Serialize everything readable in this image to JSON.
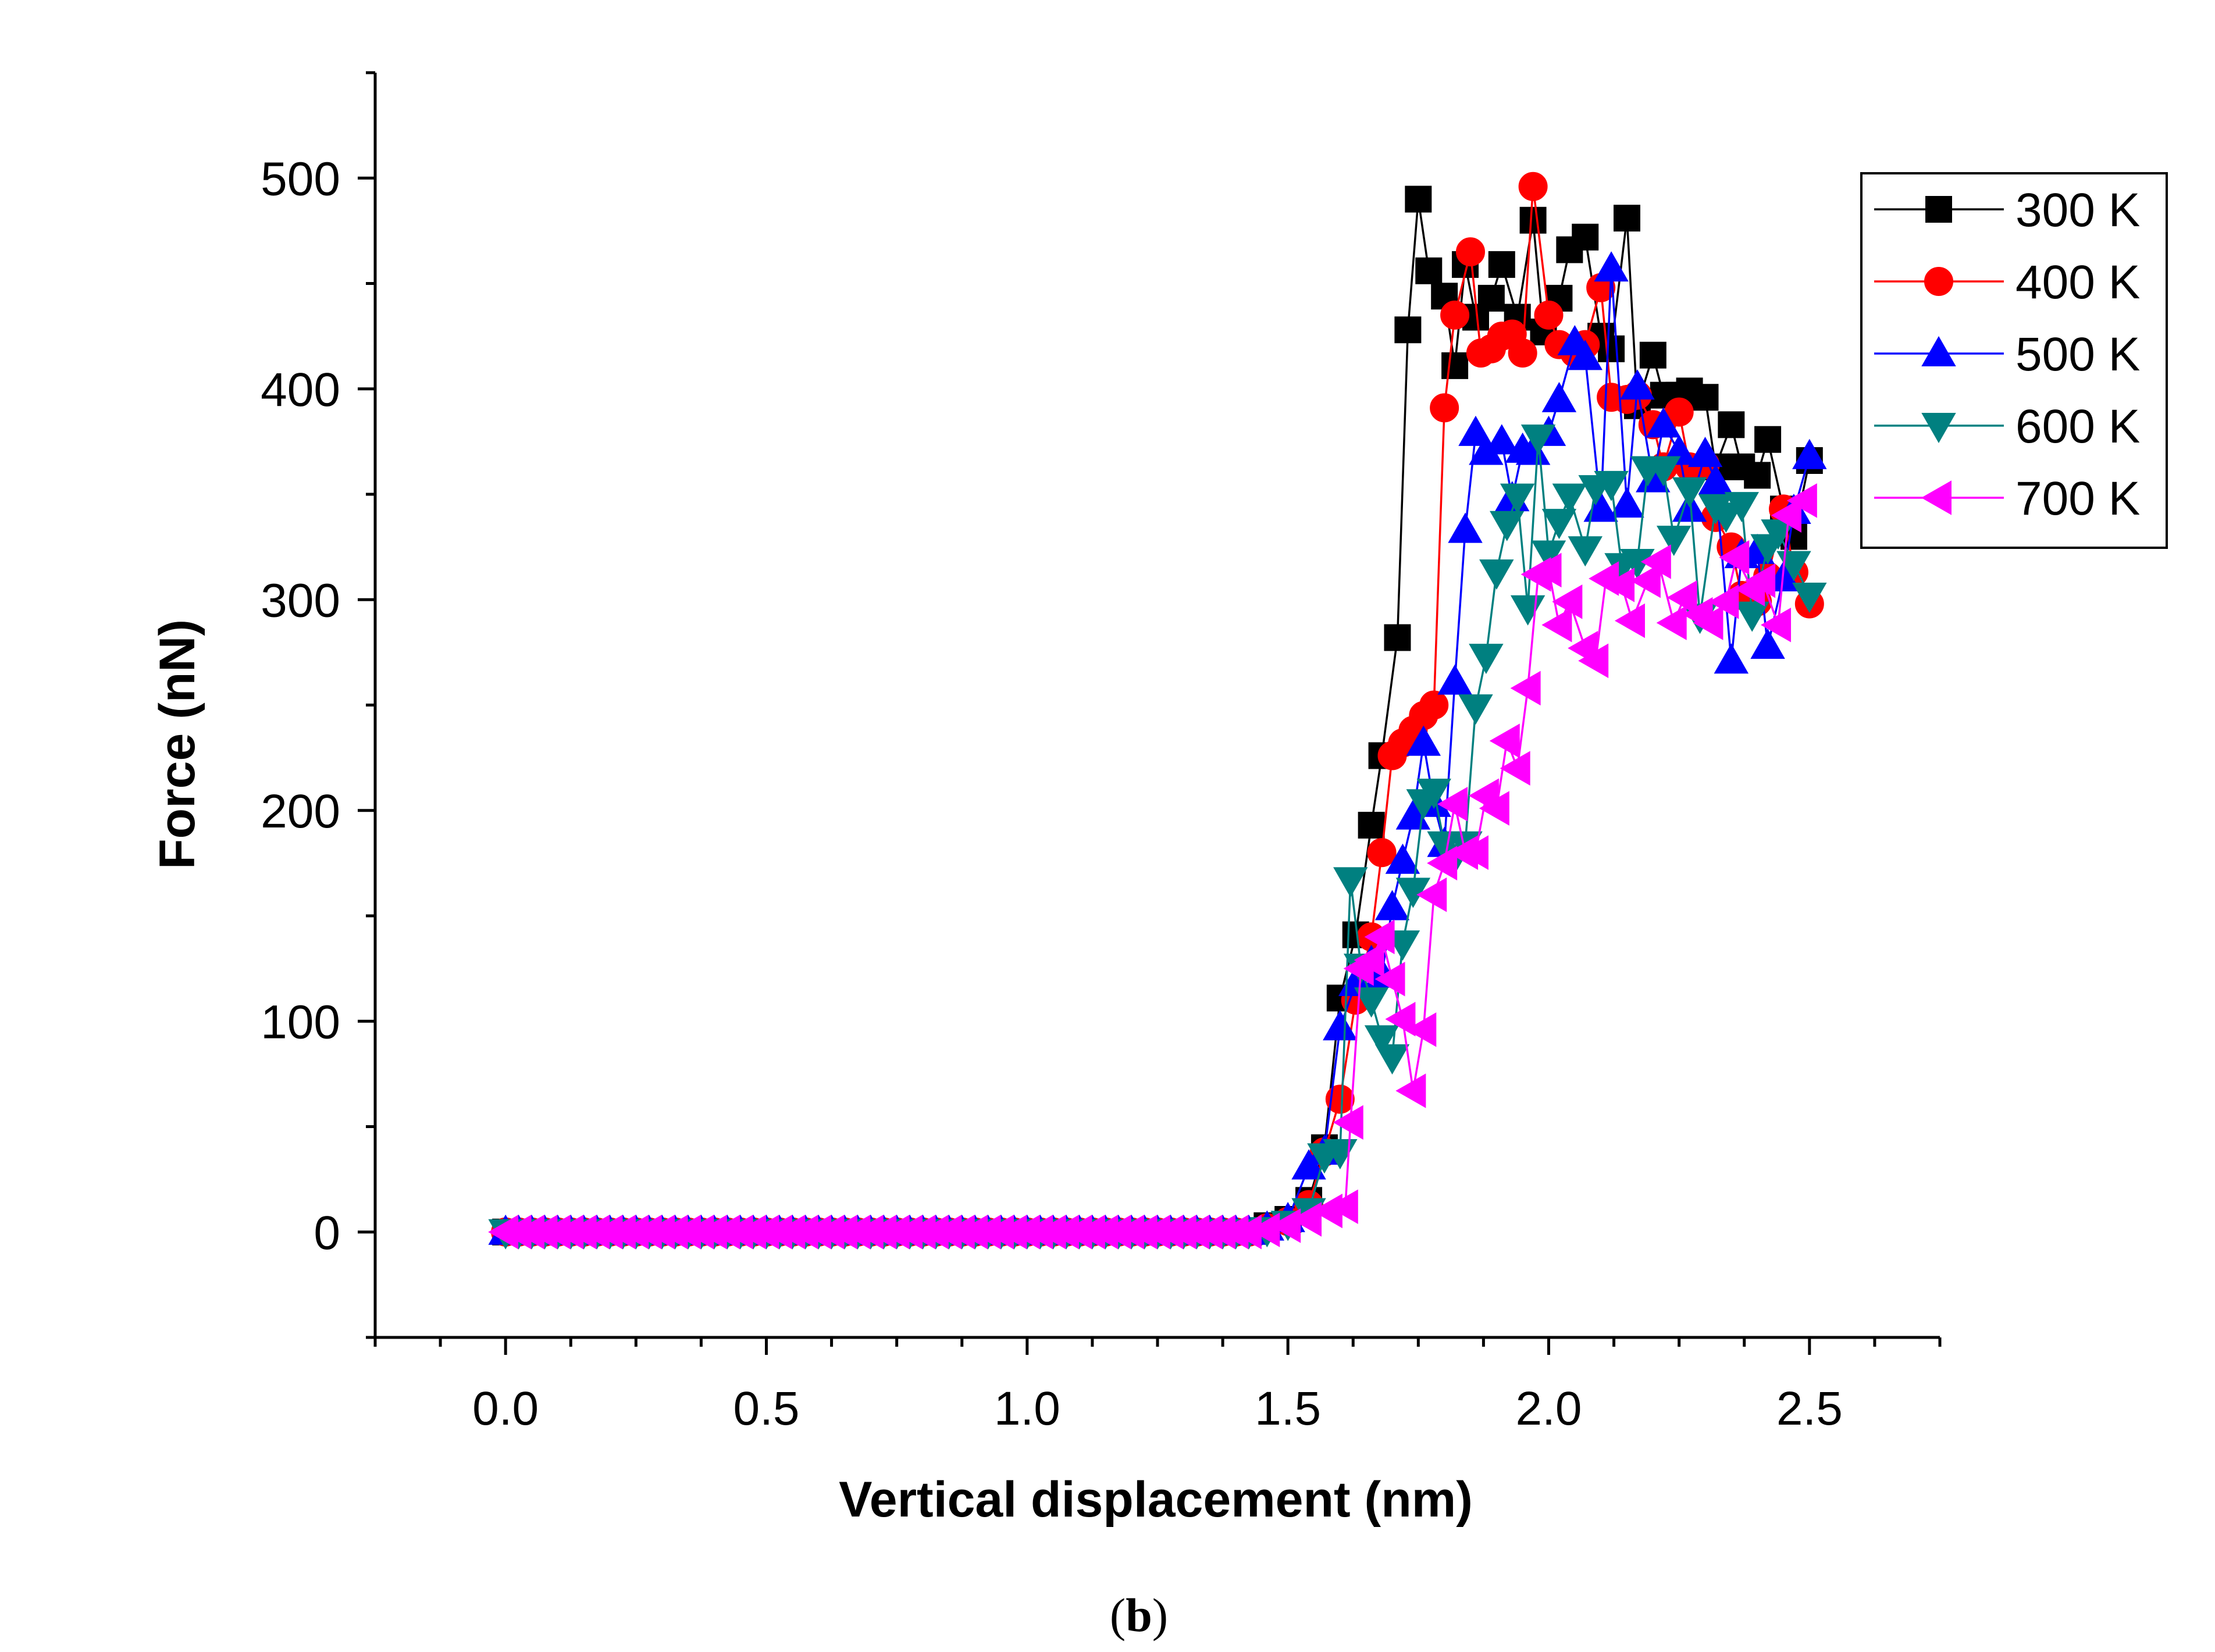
{
  "chart_data": {
    "type": "line",
    "xlabel": "Vertical displacement (nm)",
    "ylabel": "Force (nN)",
    "caption_prefix": "(",
    "caption_letter": "b",
    "caption_suffix": ")",
    "xlim": [
      -0.25,
      2.75
    ],
    "ylim": [
      -50,
      550
    ],
    "xticks": [
      0.0,
      0.5,
      1.0,
      1.5,
      2.0,
      2.5
    ],
    "xtick_labels": [
      "0.0",
      "0.5",
      "1.0",
      "1.5",
      "2.0",
      "2.5"
    ],
    "yticks": [
      0,
      100,
      200,
      300,
      400,
      500
    ],
    "ytick_labels": [
      "0",
      "100",
      "200",
      "300",
      "400",
      "500"
    ],
    "legend_position": "top-right",
    "flat_region": {
      "x_start": 0.0,
      "x_end": 1.44,
      "step": 0.025,
      "y": 0
    },
    "series": [
      {
        "name": "300 K",
        "color": "#000000",
        "marker": "square",
        "points": [
          [
            1.46,
            3
          ],
          [
            1.5,
            6
          ],
          [
            1.54,
            15
          ],
          [
            1.57,
            40
          ],
          [
            1.6,
            111
          ],
          [
            1.63,
            141
          ],
          [
            1.66,
            193
          ],
          [
            1.68,
            226
          ],
          [
            1.71,
            282
          ],
          [
            1.73,
            428
          ],
          [
            1.75,
            490
          ],
          [
            1.77,
            456
          ],
          [
            1.8,
            444
          ],
          [
            1.82,
            411
          ],
          [
            1.84,
            459
          ],
          [
            1.86,
            434
          ],
          [
            1.89,
            443
          ],
          [
            1.91,
            459
          ],
          [
            1.94,
            434
          ],
          [
            1.97,
            480
          ],
          [
            1.99,
            427
          ],
          [
            2.02,
            443
          ],
          [
            2.04,
            466
          ],
          [
            2.07,
            472
          ],
          [
            2.1,
            425
          ],
          [
            2.12,
            419
          ],
          [
            2.15,
            481
          ],
          [
            2.17,
            392
          ],
          [
            2.2,
            416
          ],
          [
            2.22,
            397
          ],
          [
            2.25,
            397
          ],
          [
            2.27,
            399
          ],
          [
            2.3,
            396
          ],
          [
            2.32,
            363
          ],
          [
            2.35,
            383
          ],
          [
            2.37,
            363
          ],
          [
            2.4,
            359
          ],
          [
            2.42,
            376
          ],
          [
            2.45,
            343
          ],
          [
            2.47,
            330
          ],
          [
            2.5,
            366
          ]
        ]
      },
      {
        "name": "400 K",
        "color": "#ff0000",
        "marker": "circle",
        "points": [
          [
            1.46,
            2
          ],
          [
            1.5,
            5
          ],
          [
            1.54,
            13
          ],
          [
            1.57,
            38
          ],
          [
            1.6,
            63
          ],
          [
            1.63,
            110
          ],
          [
            1.66,
            140
          ],
          [
            1.68,
            180
          ],
          [
            1.7,
            226
          ],
          [
            1.72,
            232
          ],
          [
            1.74,
            238
          ],
          [
            1.76,
            245
          ],
          [
            1.78,
            250
          ],
          [
            1.8,
            391
          ],
          [
            1.82,
            435
          ],
          [
            1.85,
            465
          ],
          [
            1.87,
            417
          ],
          [
            1.89,
            419
          ],
          [
            1.91,
            425
          ],
          [
            1.93,
            426
          ],
          [
            1.95,
            417
          ],
          [
            1.97,
            496
          ],
          [
            2.0,
            435
          ],
          [
            2.02,
            421
          ],
          [
            2.05,
            417
          ],
          [
            2.07,
            421
          ],
          [
            2.1,
            448
          ],
          [
            2.12,
            396
          ],
          [
            2.15,
            395
          ],
          [
            2.17,
            397
          ],
          [
            2.2,
            383
          ],
          [
            2.22,
            363
          ],
          [
            2.25,
            389
          ],
          [
            2.27,
            363
          ],
          [
            2.3,
            364
          ],
          [
            2.32,
            339
          ],
          [
            2.35,
            325
          ],
          [
            2.37,
            302
          ],
          [
            2.4,
            299
          ],
          [
            2.42,
            311
          ],
          [
            2.45,
            343
          ],
          [
            2.47,
            313
          ],
          [
            2.5,
            298
          ]
        ]
      },
      {
        "name": "500 K",
        "color": "#0000ff",
        "marker": "triangle-up",
        "points": [
          [
            1.46,
            2
          ],
          [
            1.5,
            6
          ],
          [
            1.54,
            31
          ],
          [
            1.57,
            38
          ],
          [
            1.6,
            97
          ],
          [
            1.63,
            118
          ],
          [
            1.66,
            128
          ],
          [
            1.68,
            122
          ],
          [
            1.7,
            154
          ],
          [
            1.72,
            176
          ],
          [
            1.74,
            197
          ],
          [
            1.76,
            232
          ],
          [
            1.78,
            203
          ],
          [
            1.8,
            184
          ],
          [
            1.82,
            261
          ],
          [
            1.84,
            333
          ],
          [
            1.86,
            379
          ],
          [
            1.88,
            370
          ],
          [
            1.91,
            375
          ],
          [
            1.93,
            348
          ],
          [
            1.95,
            371
          ],
          [
            1.97,
            370
          ],
          [
            2.0,
            379
          ],
          [
            2.02,
            395
          ],
          [
            2.05,
            422
          ],
          [
            2.07,
            415
          ],
          [
            2.1,
            343
          ],
          [
            2.12,
            457
          ],
          [
            2.15,
            345
          ],
          [
            2.17,
            401
          ],
          [
            2.2,
            357
          ],
          [
            2.22,
            383
          ],
          [
            2.25,
            370
          ],
          [
            2.27,
            343
          ],
          [
            2.3,
            369
          ],
          [
            2.32,
            356
          ],
          [
            2.35,
            271
          ],
          [
            2.37,
            321
          ],
          [
            2.4,
            323
          ],
          [
            2.42,
            278
          ],
          [
            2.45,
            310
          ],
          [
            2.47,
            342
          ],
          [
            2.5,
            368
          ]
        ]
      },
      {
        "name": "600 K",
        "color": "#008080",
        "marker": "triangle-down",
        "points": [
          [
            1.46,
            1
          ],
          [
            1.5,
            4
          ],
          [
            1.54,
            10
          ],
          [
            1.57,
            36
          ],
          [
            1.6,
            38
          ],
          [
            1.62,
            167
          ],
          [
            1.64,
            126
          ],
          [
            1.66,
            110
          ],
          [
            1.68,
            92
          ],
          [
            1.7,
            83
          ],
          [
            1.72,
            137
          ],
          [
            1.74,
            162
          ],
          [
            1.76,
            204
          ],
          [
            1.78,
            209
          ],
          [
            1.8,
            184
          ],
          [
            1.82,
            178
          ],
          [
            1.84,
            184
          ],
          [
            1.86,
            249
          ],
          [
            1.88,
            273
          ],
          [
            1.9,
            313
          ],
          [
            1.92,
            336
          ],
          [
            1.94,
            349
          ],
          [
            1.96,
            296
          ],
          [
            1.98,
            377
          ],
          [
            2.0,
            322
          ],
          [
            2.02,
            337
          ],
          [
            2.04,
            349
          ],
          [
            2.07,
            324
          ],
          [
            2.09,
            353
          ],
          [
            2.12,
            355
          ],
          [
            2.14,
            316
          ],
          [
            2.17,
            318
          ],
          [
            2.19,
            362
          ],
          [
            2.22,
            362
          ],
          [
            2.24,
            329
          ],
          [
            2.27,
            352
          ],
          [
            2.29,
            292
          ],
          [
            2.32,
            344
          ],
          [
            2.34,
            340
          ],
          [
            2.37,
            345
          ],
          [
            2.39,
            293
          ],
          [
            2.42,
            325
          ],
          [
            2.44,
            332
          ],
          [
            2.47,
            317
          ],
          [
            2.5,
            302
          ]
        ]
      },
      {
        "name": "700 K",
        "color": "#ff00ff",
        "marker": "triangle-left",
        "points": [
          [
            1.46,
            1
          ],
          [
            1.5,
            3
          ],
          [
            1.54,
            6
          ],
          [
            1.58,
            10
          ],
          [
            1.61,
            12
          ],
          [
            1.62,
            52
          ],
          [
            1.64,
            125
          ],
          [
            1.66,
            129
          ],
          [
            1.68,
            140
          ],
          [
            1.7,
            120
          ],
          [
            1.72,
            101
          ],
          [
            1.74,
            67
          ],
          [
            1.76,
            96
          ],
          [
            1.78,
            160
          ],
          [
            1.8,
            175
          ],
          [
            1.82,
            203
          ],
          [
            1.84,
            180
          ],
          [
            1.86,
            180
          ],
          [
            1.88,
            207
          ],
          [
            1.9,
            201
          ],
          [
            1.92,
            233
          ],
          [
            1.94,
            220
          ],
          [
            1.96,
            258
          ],
          [
            1.98,
            312
          ],
          [
            2.0,
            314
          ],
          [
            2.02,
            288
          ],
          [
            2.04,
            299
          ],
          [
            2.07,
            277
          ],
          [
            2.09,
            271
          ],
          [
            2.11,
            310
          ],
          [
            2.14,
            307
          ],
          [
            2.16,
            290
          ],
          [
            2.19,
            309
          ],
          [
            2.21,
            318
          ],
          [
            2.24,
            289
          ],
          [
            2.26,
            301
          ],
          [
            2.29,
            293
          ],
          [
            2.31,
            289
          ],
          [
            2.34,
            299
          ],
          [
            2.36,
            320
          ],
          [
            2.39,
            305
          ],
          [
            2.41,
            309
          ],
          [
            2.44,
            288
          ],
          [
            2.46,
            340
          ],
          [
            2.49,
            347
          ]
        ]
      }
    ]
  }
}
